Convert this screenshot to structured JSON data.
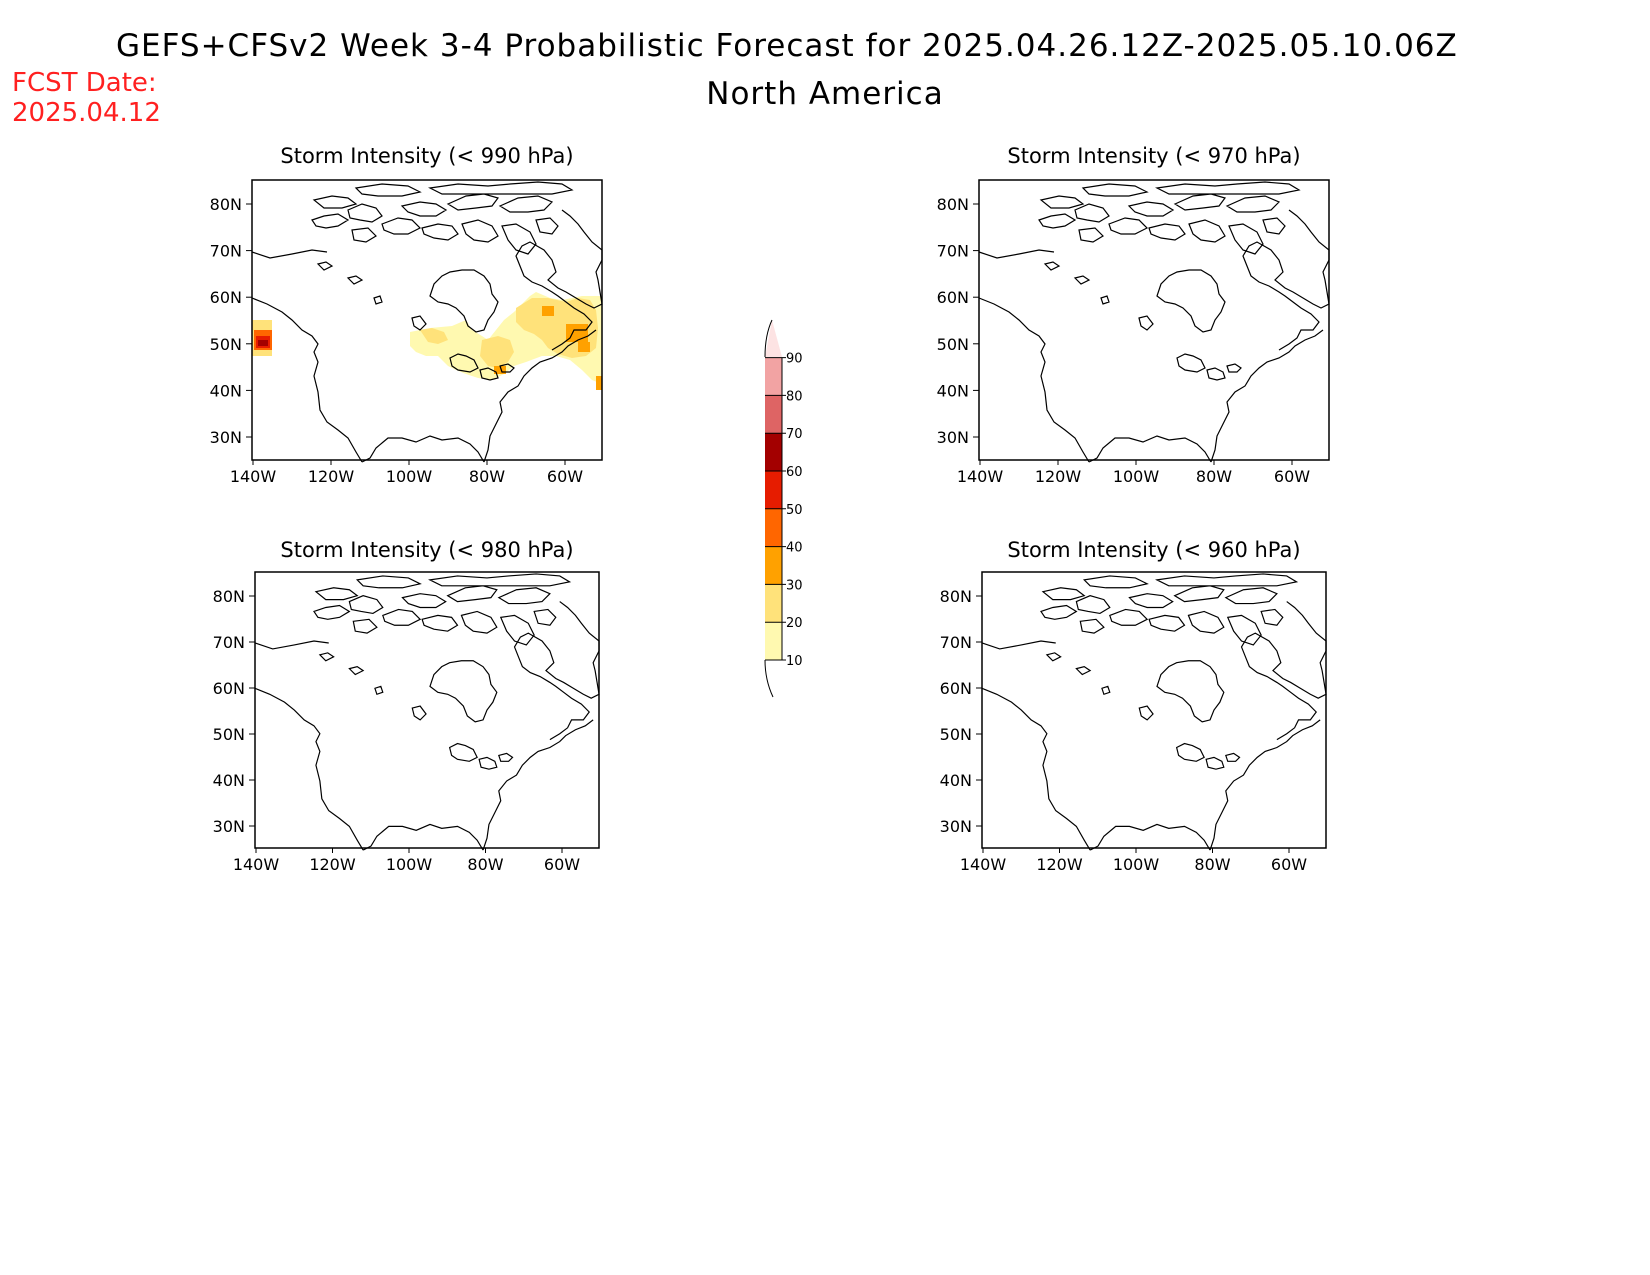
{
  "header": {
    "title": "GEFS+CFSv2 Week 3-4 Probabilistic Forecast for 2025.04.26.12Z-2025.05.10.06Z",
    "region": "North America",
    "fcst_label": "FCST Date:",
    "fcst_date": "2025.04.12"
  },
  "panels": [
    {
      "title": "Storm Intensity (< 990 hPa)"
    },
    {
      "title": "Storm Intensity (< 970 hPa)"
    },
    {
      "title": "Storm Intensity (< 980 hPa)"
    },
    {
      "title": "Storm Intensity (< 960 hPa)"
    }
  ],
  "map_axes": {
    "lat_labels": [
      "80N",
      "70N",
      "60N",
      "50N",
      "40N",
      "30N"
    ],
    "lon_labels": [
      "140W",
      "120W",
      "100W",
      "80W",
      "60W"
    ]
  },
  "colorbar": {
    "levels": [
      "10",
      "20",
      "30",
      "40",
      "50",
      "60",
      "70",
      "80",
      "90"
    ],
    "colors": [
      "#fff9b0",
      "#ffe27a",
      "#ffa100",
      "#ff6600",
      "#e61c00",
      "#a30000",
      "#de6464",
      "#f2a3a3",
      "#fde3e3"
    ]
  },
  "text_color_fcst": "#ff2020"
}
